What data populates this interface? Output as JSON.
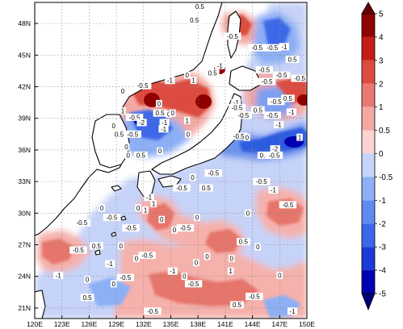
{
  "chart_data": {
    "type": "heatmap",
    "subtype": "filled-contour-map",
    "title": "",
    "xlabel": "",
    "ylabel": "",
    "lon_range": [
      120,
      150
    ],
    "lat_range": [
      20,
      50
    ],
    "x_ticks": [
      {
        "value": 120,
        "label": "120E"
      },
      {
        "value": 123,
        "label": "123E"
      },
      {
        "value": 126,
        "label": "126E"
      },
      {
        "value": 129,
        "label": "129E"
      },
      {
        "value": 132,
        "label": "132E"
      },
      {
        "value": 135,
        "label": "135E"
      },
      {
        "value": 138,
        "label": "138E"
      },
      {
        "value": 141,
        "label": "141E"
      },
      {
        "value": 144,
        "label": "144E"
      },
      {
        "value": 147,
        "label": "147E"
      },
      {
        "value": 150,
        "label": "150E"
      }
    ],
    "y_ticks": [
      {
        "value": 21,
        "label": "21N"
      },
      {
        "value": 24,
        "label": "24N"
      },
      {
        "value": 27,
        "label": "27N"
      },
      {
        "value": 30,
        "label": "30N"
      },
      {
        "value": 33,
        "label": "33N"
      },
      {
        "value": 36,
        "label": "36N"
      },
      {
        "value": 39,
        "label": "39N"
      },
      {
        "value": 42,
        "label": "42N"
      },
      {
        "value": 45,
        "label": "45N"
      },
      {
        "value": 48,
        "label": "48N"
      }
    ],
    "grid": true,
    "grid_style": "dashed",
    "colorbar": {
      "placement": "right",
      "orientation": "vertical",
      "extend": "both",
      "levels": [
        -5,
        -4,
        -3,
        -2,
        -1,
        -0.5,
        0,
        0.5,
        1,
        2,
        3,
        4,
        5
      ],
      "tick_labels": [
        "-5",
        "-4",
        "-3",
        "-2",
        "-1",
        "-0.5",
        "0",
        "0.5",
        "1",
        "2",
        "3",
        "4",
        "5"
      ],
      "colors": [
        "#0000b0",
        "#1a3bd6",
        "#3c67e8",
        "#5f8bf0",
        "#8caff5",
        "#c4d4fb",
        "#fbd3d0",
        "#f3a8a2",
        "#e97a72",
        "#dd4b40",
        "#c41d17",
        "#8f0000"
      ],
      "under_color": "#00007a",
      "over_color": "#6a0000"
    },
    "contour_labels": [
      {
        "lon": 138.2,
        "lat": 49.6,
        "text": "0.5"
      },
      {
        "lon": 137.6,
        "lat": 48.3,
        "text": "0.5"
      },
      {
        "lon": 141.8,
        "lat": 46.8,
        "text": "-0.5"
      },
      {
        "lon": 144.5,
        "lat": 45.7,
        "text": "-0.5"
      },
      {
        "lon": 146.2,
        "lat": 45.7,
        "text": "-0.5"
      },
      {
        "lon": 147.5,
        "lat": 45.8,
        "text": "-1"
      },
      {
        "lon": 148.4,
        "lat": 44.6,
        "text": "0.5"
      },
      {
        "lon": 145.3,
        "lat": 43.6,
        "text": "-0.5"
      },
      {
        "lon": 147.2,
        "lat": 43.1,
        "text": "-0.5"
      },
      {
        "lon": 145.6,
        "lat": 42.5,
        "text": "-0.5"
      },
      {
        "lon": 149.2,
        "lat": 42.8,
        "text": "-0.5"
      },
      {
        "lon": 140.4,
        "lat": 44.0,
        "text": "-1"
      },
      {
        "lon": 139.6,
        "lat": 43.3,
        "text": "0.5"
      },
      {
        "lon": 137.5,
        "lat": 42.6,
        "text": "1"
      },
      {
        "lon": 136.8,
        "lat": 43.1,
        "text": "0"
      },
      {
        "lon": 134.9,
        "lat": 42.6,
        "text": "-1"
      },
      {
        "lon": 131.9,
        "lat": 42.1,
        "text": "-0.5"
      },
      {
        "lon": 129.7,
        "lat": 41.6,
        "text": "0"
      },
      {
        "lon": 142.2,
        "lat": 40.5,
        "text": "-1"
      },
      {
        "lon": 142.3,
        "lat": 40.0,
        "text": "-0.5"
      },
      {
        "lon": 143.0,
        "lat": 39.3,
        "text": "-0.5"
      },
      {
        "lon": 144.6,
        "lat": 39.8,
        "text": "0.5"
      },
      {
        "lon": 146.6,
        "lat": 40.6,
        "text": "-0.5"
      },
      {
        "lon": 147.9,
        "lat": 40.9,
        "text": "0.5"
      },
      {
        "lon": 148.3,
        "lat": 39.6,
        "text": "-1"
      },
      {
        "lon": 146.2,
        "lat": 39.3,
        "text": "-0.5"
      },
      {
        "lon": 146.9,
        "lat": 38.4,
        "text": "-1"
      },
      {
        "lon": 133.7,
        "lat": 40.4,
        "text": "0"
      },
      {
        "lon": 133.8,
        "lat": 39.5,
        "text": "0.5"
      },
      {
        "lon": 134.8,
        "lat": 39.4,
        "text": "0"
      },
      {
        "lon": 135.2,
        "lat": 39.5,
        "text": "0"
      },
      {
        "lon": 129.7,
        "lat": 39.7,
        "text": "1"
      },
      {
        "lon": 131.0,
        "lat": 39.1,
        "text": "-0.5"
      },
      {
        "lon": 131.8,
        "lat": 38.6,
        "text": "-2"
      },
      {
        "lon": 134.3,
        "lat": 38.6,
        "text": "-1"
      },
      {
        "lon": 136.8,
        "lat": 38.8,
        "text": "1"
      },
      {
        "lon": 128.7,
        "lat": 38.3,
        "text": "0"
      },
      {
        "lon": 129.3,
        "lat": 37.5,
        "text": "0.5"
      },
      {
        "lon": 130.8,
        "lat": 37.5,
        "text": "-0.5"
      },
      {
        "lon": 134.2,
        "lat": 38.0,
        "text": "-1"
      },
      {
        "lon": 136.9,
        "lat": 37.5,
        "text": "0"
      },
      {
        "lon": 142.5,
        "lat": 37.3,
        "text": "-0.5"
      },
      {
        "lon": 143.4,
        "lat": 37.2,
        "text": "0"
      },
      {
        "lon": 149.2,
        "lat": 37.2,
        "text": "1"
      },
      {
        "lon": 146.5,
        "lat": 36.1,
        "text": "-2"
      },
      {
        "lon": 145.3,
        "lat": 35.5,
        "text": "0.5"
      },
      {
        "lon": 146.4,
        "lat": 35.5,
        "text": "-0.5"
      },
      {
        "lon": 130.1,
        "lat": 36.3,
        "text": "0"
      },
      {
        "lon": 131.7,
        "lat": 35.5,
        "text": "0.5"
      },
      {
        "lon": 133.8,
        "lat": 35.9,
        "text": "0"
      },
      {
        "lon": 130.3,
        "lat": 35.5,
        "text": "0"
      },
      {
        "lon": 139.7,
        "lat": 33.8,
        "text": "-0.5"
      },
      {
        "lon": 137.4,
        "lat": 33.4,
        "text": "0"
      },
      {
        "lon": 136.2,
        "lat": 32.4,
        "text": "-0.5"
      },
      {
        "lon": 138.9,
        "lat": 32.4,
        "text": "0.5"
      },
      {
        "lon": 145.0,
        "lat": 33.0,
        "text": "-0.5"
      },
      {
        "lon": 146.3,
        "lat": 32.2,
        "text": "-1"
      },
      {
        "lon": 147.9,
        "lat": 30.8,
        "text": "-0.5"
      },
      {
        "lon": 132.6,
        "lat": 31.5,
        "text": "-1"
      },
      {
        "lon": 131.4,
        "lat": 30.5,
        "text": "0"
      },
      {
        "lon": 132.2,
        "lat": 30.3,
        "text": "1"
      },
      {
        "lon": 133.1,
        "lat": 30.9,
        "text": "1"
      },
      {
        "lon": 128.5,
        "lat": 29.6,
        "text": "-0.5"
      },
      {
        "lon": 127.4,
        "lat": 30.5,
        "text": "0"
      },
      {
        "lon": 130.6,
        "lat": 28.6,
        "text": "-0.5"
      },
      {
        "lon": 134.0,
        "lat": 29.4,
        "text": "0"
      },
      {
        "lon": 137.9,
        "lat": 29.6,
        "text": "0"
      },
      {
        "lon": 143.5,
        "lat": 30.0,
        "text": "0"
      },
      {
        "lon": 136.6,
        "lat": 28.6,
        "text": "-0.5"
      },
      {
        "lon": 135.4,
        "lat": 28.4,
        "text": "0"
      },
      {
        "lon": 125.2,
        "lat": 29.1,
        "text": "-0.5"
      },
      {
        "lon": 126.8,
        "lat": 26.9,
        "text": "0.5"
      },
      {
        "lon": 124.8,
        "lat": 26.5,
        "text": "-0.5"
      },
      {
        "lon": 129.5,
        "lat": 26.9,
        "text": "0"
      },
      {
        "lon": 128.3,
        "lat": 25.2,
        "text": "-1"
      },
      {
        "lon": 131.2,
        "lat": 25.7,
        "text": "0"
      },
      {
        "lon": 132.4,
        "lat": 26.0,
        "text": "-0.5"
      },
      {
        "lon": 143.0,
        "lat": 27.3,
        "text": "0.5"
      },
      {
        "lon": 144.6,
        "lat": 26.8,
        "text": "0"
      },
      {
        "lon": 141.7,
        "lat": 25.7,
        "text": "0"
      },
      {
        "lon": 139.0,
        "lat": 25.9,
        "text": "0"
      },
      {
        "lon": 137.8,
        "lat": 25.3,
        "text": "0"
      },
      {
        "lon": 141.6,
        "lat": 24.5,
        "text": "1"
      },
      {
        "lon": 135.2,
        "lat": 24.5,
        "text": "-1"
      },
      {
        "lon": 136.5,
        "lat": 24.0,
        "text": "0"
      },
      {
        "lon": 122.6,
        "lat": 24.1,
        "text": "-1"
      },
      {
        "lon": 125.8,
        "lat": 23.7,
        "text": "0"
      },
      {
        "lon": 128.7,
        "lat": 23.3,
        "text": "0"
      },
      {
        "lon": 130.0,
        "lat": 23.9,
        "text": "-0.5"
      },
      {
        "lon": 137.5,
        "lat": 23.3,
        "text": "-0.5"
      },
      {
        "lon": 147.0,
        "lat": 24.1,
        "text": "0"
      },
      {
        "lon": 125.8,
        "lat": 22.0,
        "text": "0.5"
      },
      {
        "lon": 144.2,
        "lat": 22.1,
        "text": "-0.5"
      },
      {
        "lon": 142.3,
        "lat": 21.3,
        "text": "0.5"
      },
      {
        "lon": 133.0,
        "lat": 20.7,
        "text": "-0.5"
      },
      {
        "lon": 148.4,
        "lat": 20.7,
        "text": "-1"
      }
    ]
  }
}
